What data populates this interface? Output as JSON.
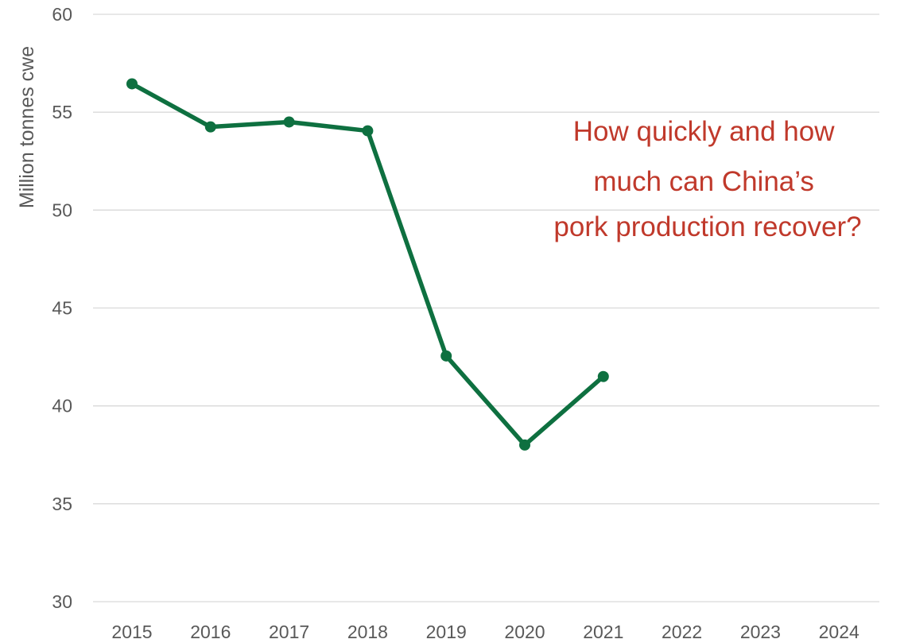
{
  "chart_data": {
    "type": "line",
    "title": "",
    "xlabel": "",
    "ylabel": "Million tonnes cwe",
    "categories": [
      "2015",
      "2016",
      "2017",
      "2018",
      "2019",
      "2020",
      "2021",
      "2022",
      "2023",
      "2024"
    ],
    "series": [
      {
        "values": [
          56.45,
          54.25,
          54.5,
          54.05,
          42.55,
          38.0,
          41.5,
          null,
          null,
          null
        ],
        "color": "#0e7040"
      }
    ],
    "ylim": [
      30,
      60
    ],
    "yticks": [
      30,
      35,
      40,
      45,
      50,
      55,
      60
    ],
    "grid": "horizontal",
    "legend": "none",
    "annotation": {
      "lines": [
        "How quickly and how",
        "much can China’s",
        "pork production recover?"
      ],
      "color": "#c0392b"
    }
  }
}
